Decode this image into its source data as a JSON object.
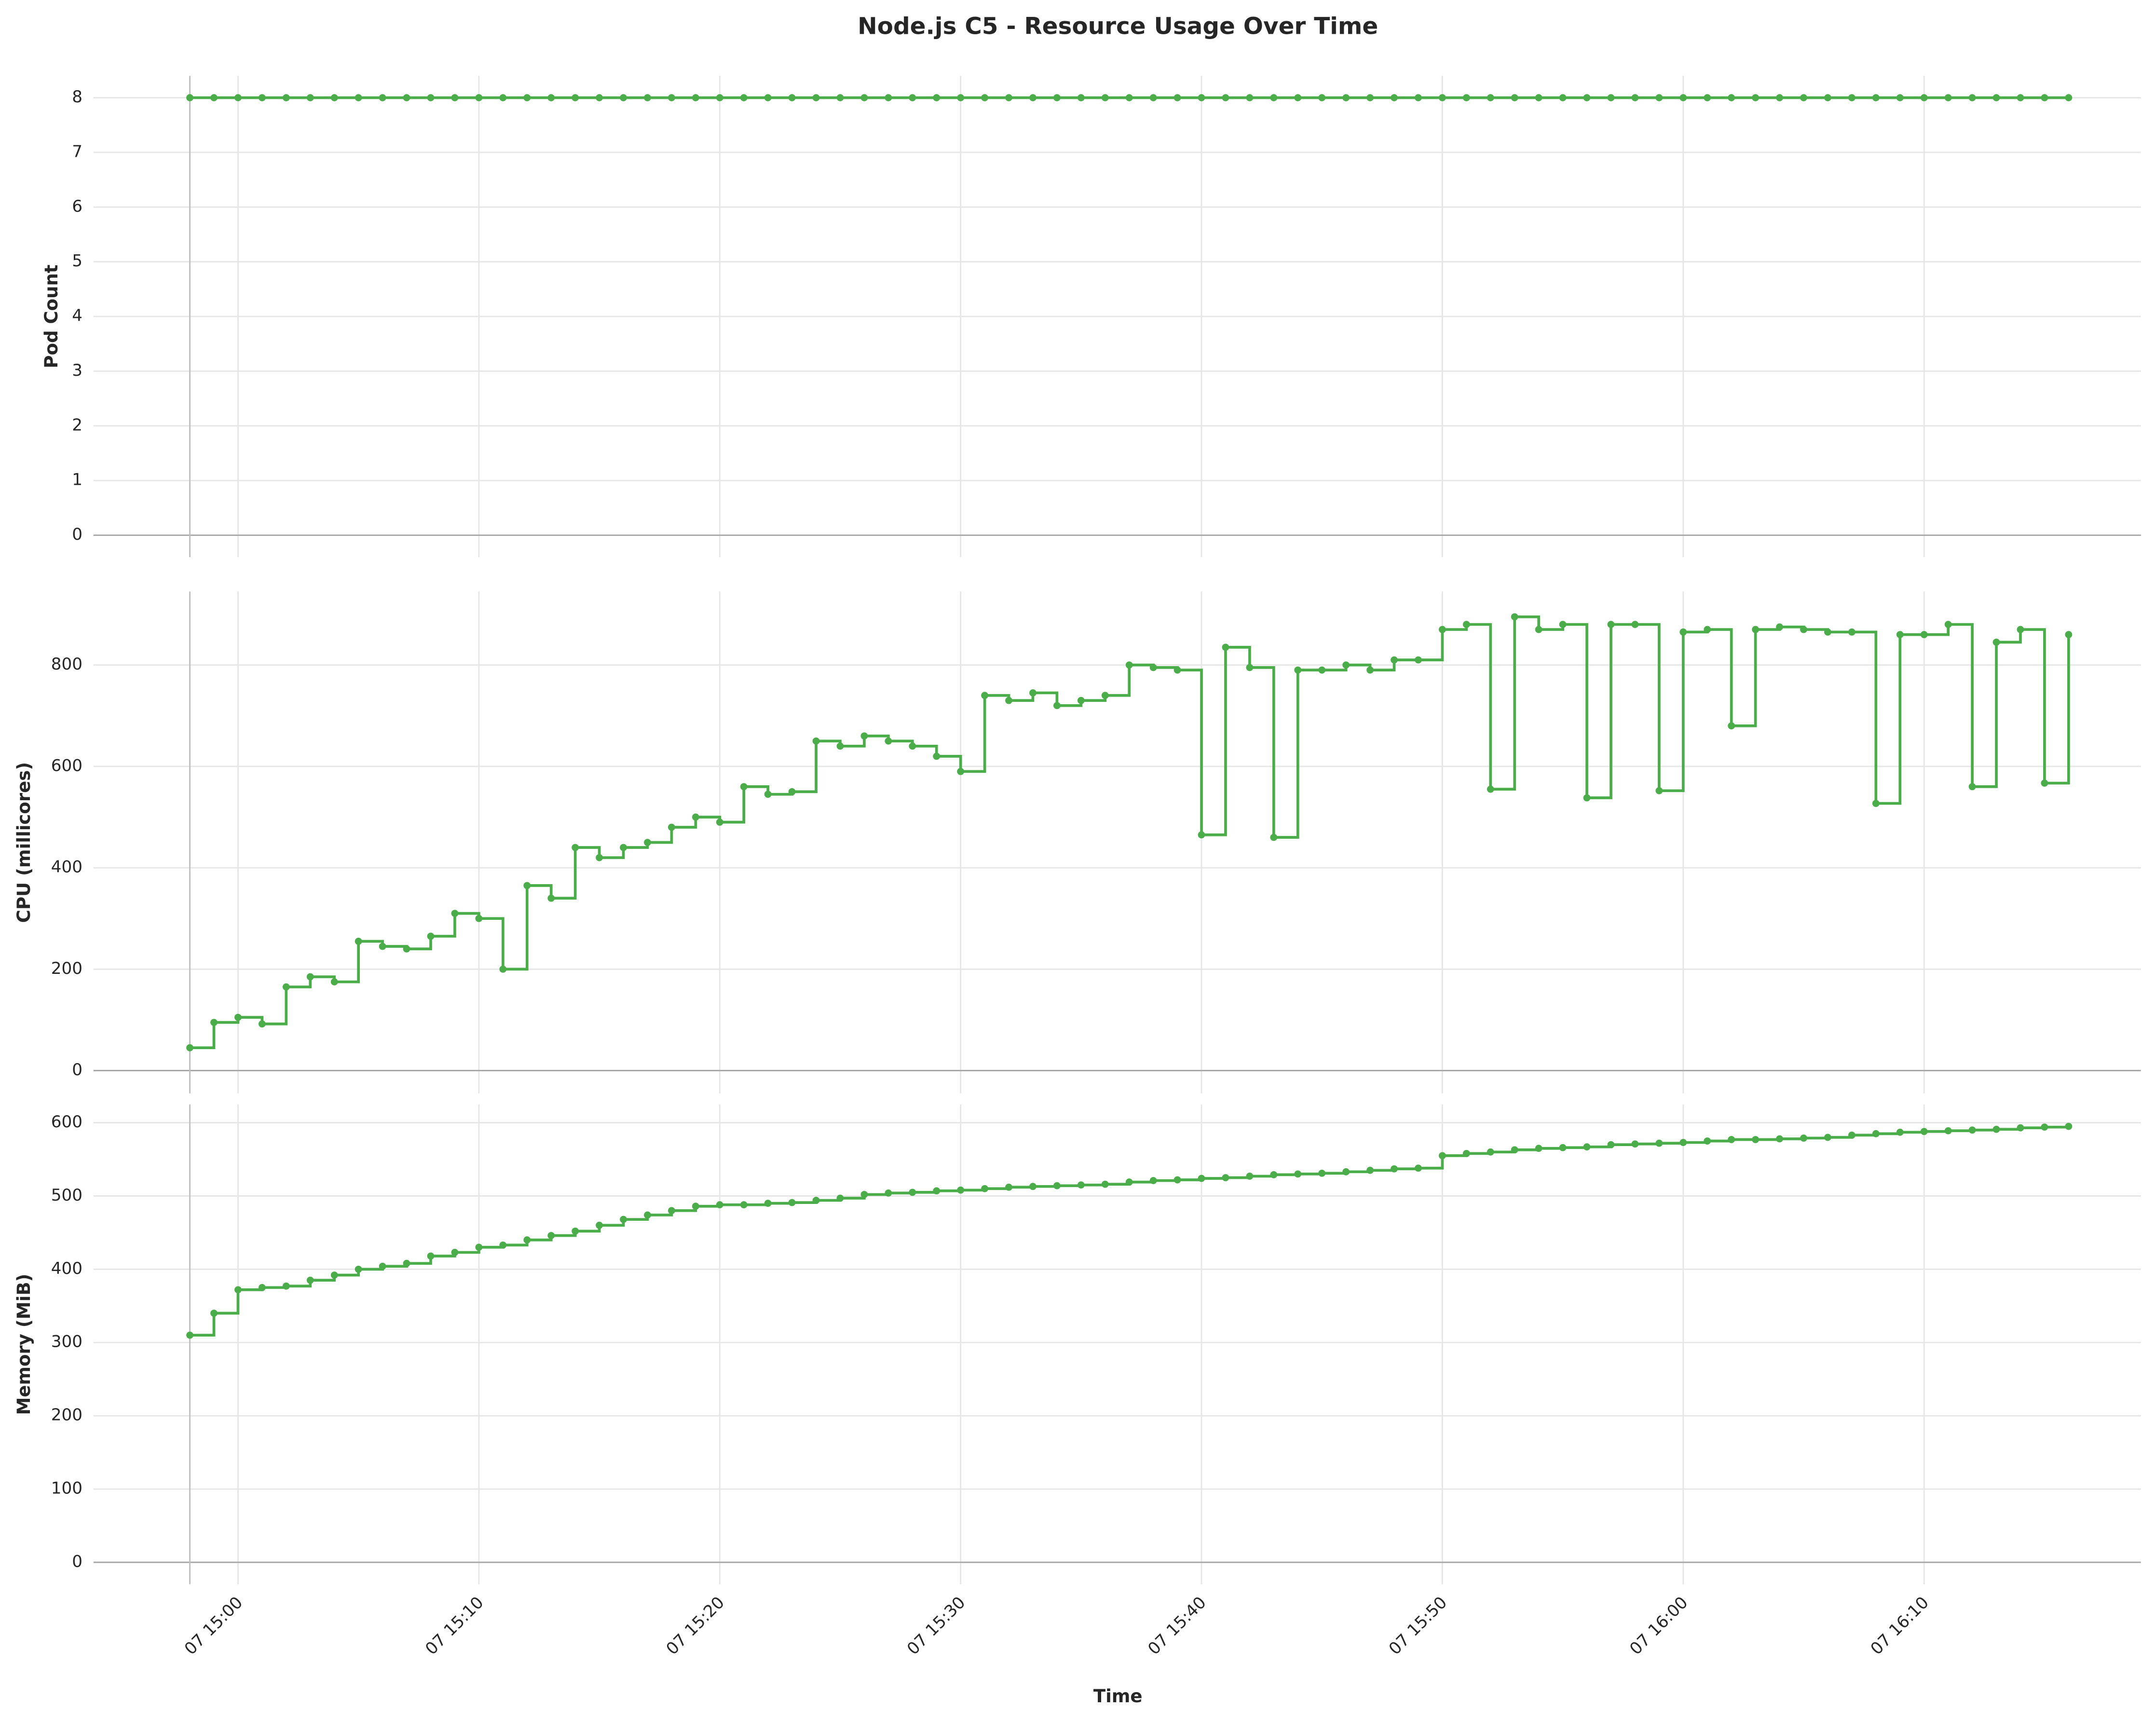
{
  "chart_data": {
    "type": "line",
    "title": "Node.js C5 - Resource Usage Over Time",
    "x_label": "Time",
    "drawstyle": "steps-post",
    "markers": true,
    "grid": true,
    "x": [
      "07 14:58",
      "07 14:59",
      "07 15:00",
      "07 15:01",
      "07 15:02",
      "07 15:03",
      "07 15:04",
      "07 15:05",
      "07 15:06",
      "07 15:07",
      "07 15:08",
      "07 15:09",
      "07 15:10",
      "07 15:11",
      "07 15:12",
      "07 15:13",
      "07 15:14",
      "07 15:15",
      "07 15:16",
      "07 15:17",
      "07 15:18",
      "07 15:19",
      "07 15:20",
      "07 15:21",
      "07 15:22",
      "07 15:23",
      "07 15:24",
      "07 15:25",
      "07 15:26",
      "07 15:27",
      "07 15:28",
      "07 15:29",
      "07 15:30",
      "07 15:31",
      "07 15:32",
      "07 15:33",
      "07 15:34",
      "07 15:35",
      "07 15:36",
      "07 15:37",
      "07 15:38",
      "07 15:39",
      "07 15:40",
      "07 15:41",
      "07 15:42",
      "07 15:43",
      "07 15:44",
      "07 15:45",
      "07 15:46",
      "07 15:47",
      "07 15:48",
      "07 15:49",
      "07 15:50",
      "07 15:51",
      "07 15:52",
      "07 15:53",
      "07 15:54",
      "07 15:55",
      "07 15:56",
      "07 15:57",
      "07 15:58",
      "07 15:59",
      "07 16:00",
      "07 16:01",
      "07 16:02",
      "07 16:03",
      "07 16:04",
      "07 16:05",
      "07 16:06",
      "07 16:07",
      "07 16:08",
      "07 16:09",
      "07 16:10",
      "07 16:11",
      "07 16:12",
      "07 16:13",
      "07 16:14",
      "07 16:15",
      "07 16:16"
    ],
    "xlim": [
      "07 14:54",
      "07 16:19"
    ],
    "xticks": [
      "07 15:00",
      "07 15:10",
      "07 15:20",
      "07 15:30",
      "07 15:40",
      "07 15:50",
      "07 16:00",
      "07 16:10"
    ],
    "panels": [
      {
        "y_label": "Pod Count",
        "ylim": [
          -0.4,
          8.4
        ],
        "yticks": [
          0,
          1,
          2,
          3,
          4,
          5,
          6,
          7,
          8
        ],
        "series": [
          {
            "color": "#4aad4a",
            "values": [
              8,
              8,
              8,
              8,
              8,
              8,
              8,
              8,
              8,
              8,
              8,
              8,
              8,
              8,
              8,
              8,
              8,
              8,
              8,
              8,
              8,
              8,
              8,
              8,
              8,
              8,
              8,
              8,
              8,
              8,
              8,
              8,
              8,
              8,
              8,
              8,
              8,
              8,
              8,
              8,
              8,
              8,
              8,
              8,
              8,
              8,
              8,
              8,
              8,
              8,
              8,
              8,
              8,
              8,
              8,
              8,
              8,
              8,
              8,
              8,
              8,
              8,
              8,
              8,
              8,
              8,
              8,
              8,
              8,
              8,
              8,
              8,
              8,
              8,
              8,
              8,
              8,
              8,
              8
            ]
          }
        ]
      },
      {
        "y_label": "CPU (millicores)",
        "ylim": [
          -45,
          945
        ],
        "yticks": [
          0,
          200,
          400,
          600,
          800
        ],
        "series": [
          {
            "color": "#4aad4a",
            "values": [
              45,
              95,
              105,
              92,
              165,
              185,
              175,
              255,
              245,
              240,
              265,
              310,
              300,
              200,
              365,
              340,
              440,
              420,
              440,
              450,
              480,
              500,
              490,
              560,
              545,
              550,
              650,
              640,
              660,
              650,
              640,
              620,
              590,
              740,
              730,
              745,
              720,
              730,
              740,
              800,
              795,
              790,
              465,
              835,
              795,
              460,
              790,
              790,
              800,
              790,
              810,
              810,
              870,
              880,
              555,
              895,
              870,
              880,
              538,
              880,
              880,
              552,
              865,
              870,
              680,
              870,
              875,
              870,
              865,
              865,
              527,
              860,
              860,
              880,
              560,
              845,
              870,
              567,
              860
            ]
          }
        ]
      },
      {
        "y_label": "Memory (MiB)",
        "ylim": [
          -30,
          625
        ],
        "yticks": [
          0,
          100,
          200,
          300,
          400,
          500,
          600
        ],
        "series": [
          {
            "color": "#4aad4a",
            "values": [
              310,
              340,
              372,
              375,
              377,
              385,
              392,
              400,
              404,
              408,
              418,
              423,
              430,
              433,
              440,
              446,
              452,
              460,
              468,
              474,
              480,
              486,
              488,
              488,
              490,
              491,
              494,
              497,
              502,
              504,
              505,
              507,
              508,
              510,
              512,
              513,
              514,
              515,
              516,
              519,
              521,
              522,
              524,
              525,
              527,
              529,
              530,
              531,
              533,
              535,
              537,
              538,
              555,
              558,
              560,
              563,
              565,
              566,
              567,
              570,
              571,
              572,
              573,
              575,
              577,
              577,
              578,
              579,
              580,
              583,
              585,
              587,
              588,
              589,
              590,
              591,
              593,
              594,
              595
            ]
          }
        ]
      }
    ]
  }
}
